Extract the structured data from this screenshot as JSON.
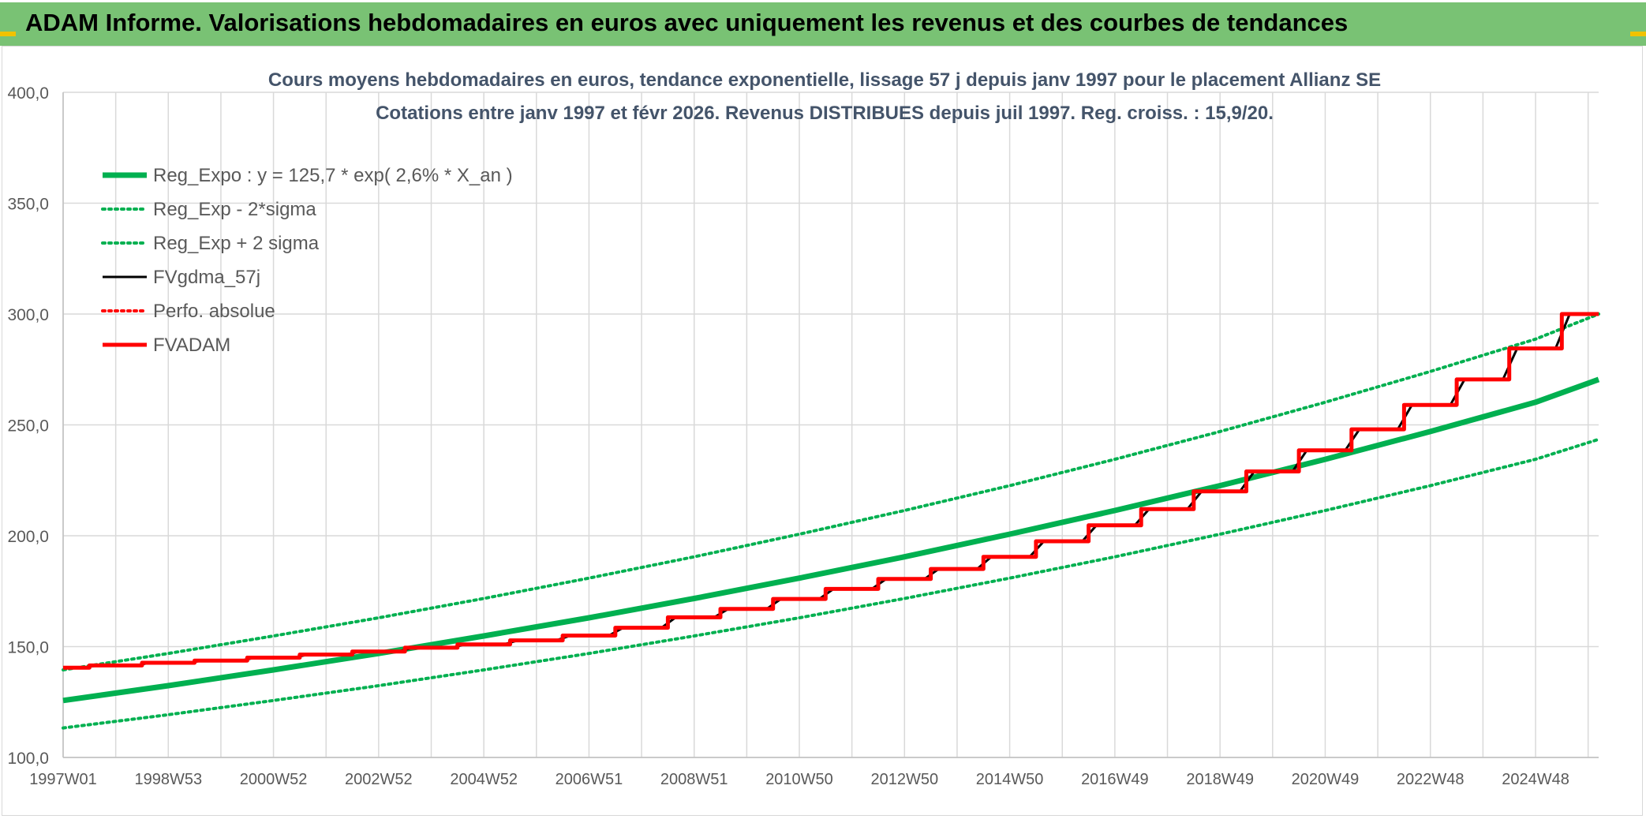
{
  "header": {
    "title": "ADAM Informe. Valorisations hebdomadaires en euros avec uniquement les revenus et des courbes de tendances"
  },
  "colors": {
    "header_bg": "#79c274",
    "reg_expo": "#00b050",
    "fvgdma": "#000000",
    "fvadam": "#ff0000",
    "perfo": "#ff0000",
    "grid": "#d9d9d9",
    "accent_corner": "#f2c200"
  },
  "chart_data": {
    "type": "line",
    "title_line1": "Cours moyens hebdomadaires en euros, tendance exponentielle, lissage 57 j depuis janv 1997 pour le placement Allianz SE",
    "title_line2": "Cotations entre janv 1997 et févr 2026. Revenus DISTRIBUES depuis juil 1997. Reg. croiss. : 15,9/20.",
    "xlabel": "",
    "ylabel": "",
    "ylim": [
      100,
      400
    ],
    "yticks": [
      "100,0",
      "150,0",
      "200,0",
      "250,0",
      "300,0",
      "350,0",
      "400,0"
    ],
    "ytick_values": [
      100,
      150,
      200,
      250,
      300,
      350,
      400
    ],
    "xlim": [
      1997.0,
      2026.2
    ],
    "xticks": [
      "1997W01",
      "1998W53",
      "2000W52",
      "2002W52",
      "2004W52",
      "2006W51",
      "2008W51",
      "2010W50",
      "2012W50",
      "2014W50",
      "2016W49",
      "2018W49",
      "2020W49",
      "2022W48",
      "2024W48"
    ],
    "xtick_years": [
      1997.0,
      1999.0,
      2001.0,
      2003.0,
      2005.0,
      2007.0,
      2009.0,
      2011.0,
      2013.0,
      2015.0,
      2017.0,
      2019.0,
      2021.0,
      2023.0,
      2025.0
    ],
    "grid": true,
    "legend_position": "top-left",
    "legend": [
      {
        "label": "Reg_Expo : y = 125,7 * exp( 2,6% *  X_an )",
        "style": "solid-thick",
        "color": "#00b050"
      },
      {
        "label": "Reg_Exp - 2*sigma",
        "style": "dotted",
        "color": "#00b050"
      },
      {
        "label": "Reg_Exp + 2 sigma",
        "style": "dotted",
        "color": "#00b050"
      },
      {
        "label": "FVgdma_57j",
        "style": "solid",
        "color": "#000000"
      },
      {
        "label": "Perfo. absolue",
        "style": "dotted",
        "color": "#ff0000"
      },
      {
        "label": "FVADAM",
        "style": "solid-thick",
        "color": "#ff0000"
      }
    ],
    "series": [
      {
        "name": "Reg_Expo : y = 125,7 * exp( 2,6% *  X_an )",
        "x": [
          1997.0,
          1999.0,
          2001.0,
          2003.0,
          2005.0,
          2007.0,
          2009.0,
          2011.0,
          2013.0,
          2015.0,
          2017.0,
          2019.0,
          2021.0,
          2023.0,
          2025.0,
          2026.2
        ],
        "values": [
          125.7,
          132.4,
          139.5,
          146.9,
          154.8,
          163.0,
          171.7,
          180.9,
          190.5,
          200.7,
          211.4,
          222.6,
          234.5,
          247.0,
          260.2,
          270.5
        ]
      },
      {
        "name": "Reg_Exp - 2*sigma",
        "x": [
          1997.0,
          1999.0,
          2001.0,
          2003.0,
          2005.0,
          2007.0,
          2009.0,
          2011.0,
          2013.0,
          2015.0,
          2017.0,
          2019.0,
          2021.0,
          2023.0,
          2025.0,
          2026.2
        ],
        "values": [
          113.3,
          119.3,
          125.7,
          132.4,
          139.5,
          146.9,
          154.8,
          163.0,
          171.7,
          180.9,
          190.5,
          200.7,
          211.4,
          222.6,
          234.5,
          243.5
        ]
      },
      {
        "name": "Reg_Exp + 2 sigma",
        "x": [
          1997.0,
          1999.0,
          2001.0,
          2003.0,
          2005.0,
          2007.0,
          2009.0,
          2011.0,
          2013.0,
          2015.0,
          2017.0,
          2019.0,
          2021.0,
          2023.0,
          2025.0,
          2026.2
        ],
        "values": [
          139.5,
          146.9,
          154.8,
          163.0,
          171.7,
          180.9,
          190.5,
          200.7,
          211.4,
          222.6,
          234.5,
          247.0,
          260.2,
          274.1,
          288.7,
          300.0
        ]
      },
      {
        "name": "FVADAM",
        "x": [
          1997.0,
          1997.5,
          1997.5,
          1998.5,
          1998.5,
          1999.5,
          1999.5,
          2000.5,
          2000.5,
          2001.5,
          2001.5,
          2002.5,
          2002.5,
          2003.5,
          2003.5,
          2004.5,
          2004.5,
          2005.5,
          2005.5,
          2006.5,
          2006.5,
          2007.5,
          2007.5,
          2008.5,
          2008.5,
          2009.5,
          2009.5,
          2010.5,
          2010.5,
          2011.5,
          2011.5,
          2012.5,
          2012.5,
          2013.5,
          2013.5,
          2014.5,
          2014.5,
          2015.5,
          2015.5,
          2016.5,
          2016.5,
          2017.5,
          2017.5,
          2018.5,
          2018.5,
          2019.5,
          2019.5,
          2020.5,
          2020.5,
          2021.5,
          2021.5,
          2022.5,
          2022.5,
          2023.5,
          2023.5,
          2024.5,
          2024.5,
          2025.5,
          2025.5,
          2026.2
        ],
        "values": [
          140.5,
          140.5,
          141.5,
          141.5,
          142.7,
          142.7,
          143.7,
          143.7,
          145.0,
          145.0,
          146.4,
          146.4,
          147.8,
          147.8,
          149.5,
          149.5,
          151.0,
          151.0,
          152.8,
          152.8,
          155.0,
          155.0,
          158.5,
          158.5,
          163.2,
          163.2,
          167.0,
          167.0,
          171.5,
          171.5,
          176.0,
          176.0,
          180.5,
          180.5,
          185.0,
          185.0,
          190.5,
          190.5,
          197.5,
          197.5,
          204.7,
          204.7,
          212.0,
          212.0,
          220.0,
          220.0,
          229.0,
          229.0,
          238.5,
          238.5,
          248.0,
          248.0,
          259.0,
          259.0,
          270.5,
          270.5,
          284.5,
          284.5,
          300.0,
          300.0
        ]
      }
    ]
  }
}
